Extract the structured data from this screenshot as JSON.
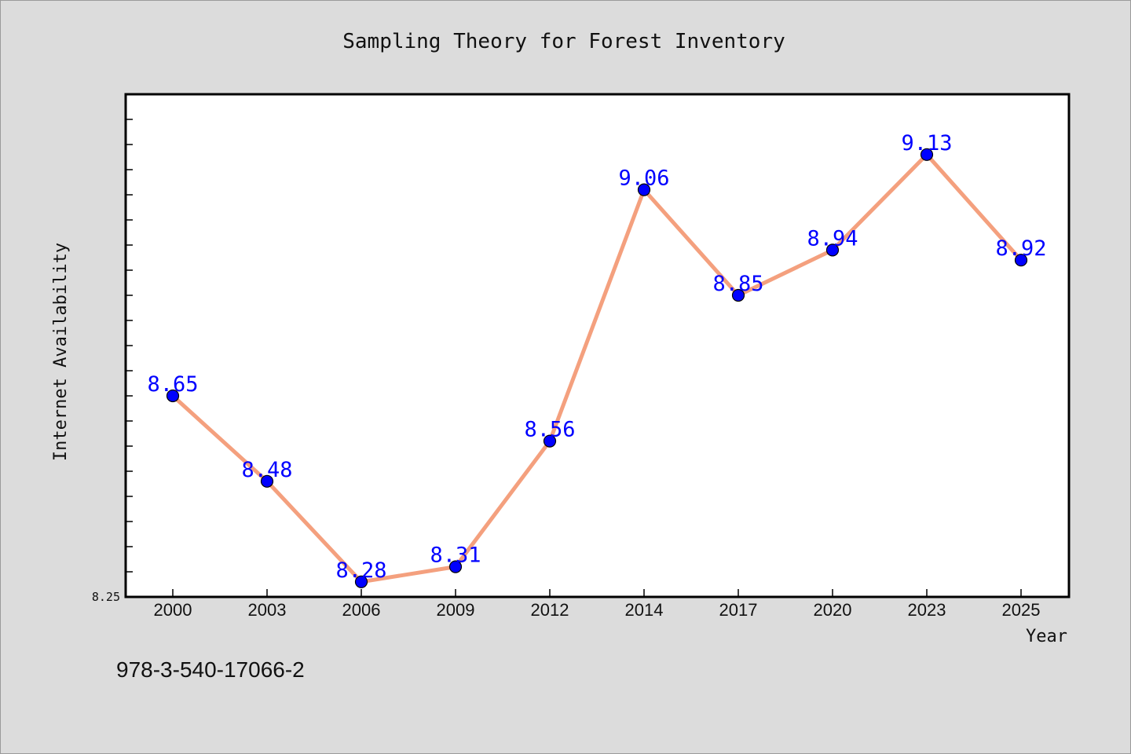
{
  "page": {
    "footer_code": "978-3-540-17066-2"
  },
  "chart_data": {
    "type": "line",
    "title": "Sampling Theory for Forest Inventory",
    "xlabel": "Year",
    "ylabel": "Internet Availability",
    "categories": [
      "2000",
      "2003",
      "2006",
      "2009",
      "2012",
      "2014",
      "2017",
      "2020",
      "2023",
      "2025"
    ],
    "series": [
      {
        "values": [
          8.65,
          8.48,
          8.28,
          8.31,
          8.56,
          9.06,
          8.85,
          8.94,
          9.13,
          8.92
        ]
      }
    ],
    "data_labels": [
      "8.65",
      "8.48",
      "8.28",
      "8.31",
      "8.56",
      "9.06",
      "8.85",
      "8.94",
      "9.13",
      "8.92"
    ],
    "y_tick_labels": [
      "8.25"
    ],
    "ylim": [
      8.25,
      9.25
    ],
    "grid": false,
    "legend": "none",
    "colors": {
      "line": "#f4a07e",
      "marker_fill": "#0000ff",
      "marker_edge": "#000000",
      "data_label": "#0000ff",
      "plot_background": "#ffffff",
      "figure_background": "#dcdcdc"
    }
  }
}
